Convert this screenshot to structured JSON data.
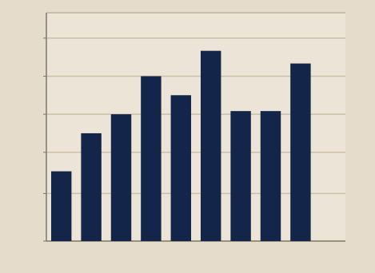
{
  "chart_data": {
    "type": "bar",
    "title": "",
    "xlabel": "",
    "ylabel": "",
    "categories": [
      "",
      "",
      "",
      "",
      "",
      "",
      "",
      "",
      "",
      ""
    ],
    "values": [
      22,
      34,
      40,
      52,
      46,
      60,
      41,
      41,
      56,
      0
    ],
    "ylim": [
      0,
      72
    ],
    "y_ticks": [
      0,
      15,
      28,
      40,
      52,
      64
    ],
    "y_tick_labels": [
      "",
      "",
      "",
      "",
      "",
      ""
    ],
    "right_axis_labels": [
      "",
      "",
      "",
      "",
      "",
      "",
      ""
    ],
    "grid": true,
    "colors": {
      "bar": "#14254a",
      "background": "#e6dccb",
      "plot_background": "#ece4d6",
      "axis": "#7d7666",
      "grid": "#cbbfa8",
      "text": "#1f2a4a"
    }
  }
}
